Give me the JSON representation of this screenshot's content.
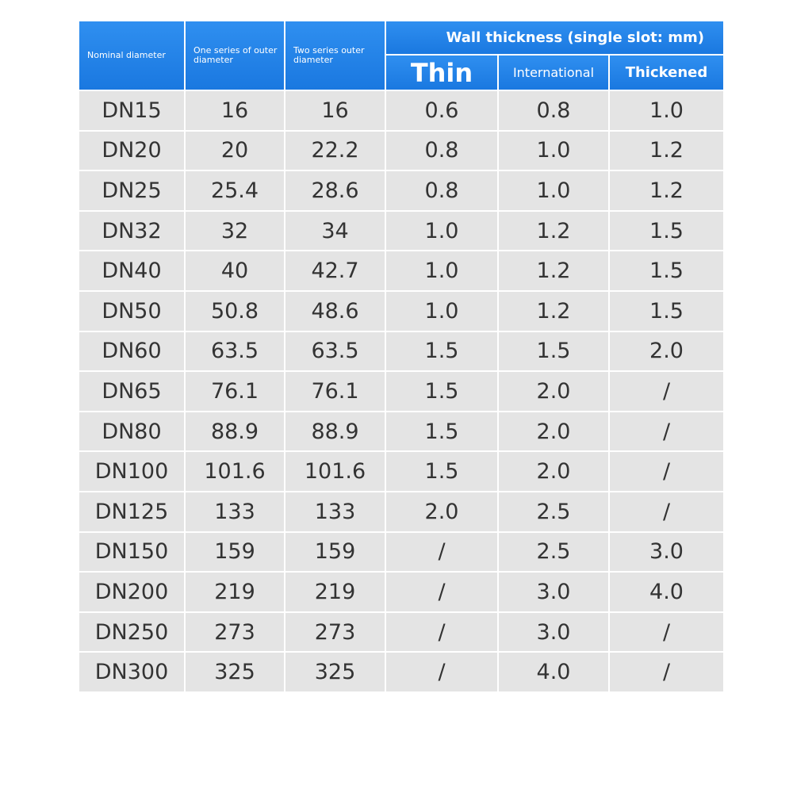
{
  "table": {
    "header": {
      "nominal": "Nominal diameter",
      "series_one": "One series of outer diameter",
      "series_two": "Two series outer diameter",
      "wall_thickness": "Wall thickness (single slot: mm)",
      "subheaders": [
        "Thin",
        "International",
        "Thickened"
      ]
    },
    "rows": [
      [
        "DN15",
        "16",
        "16",
        "0.6",
        "0.8",
        "1.0"
      ],
      [
        "DN20",
        "20",
        "22.2",
        "0.8",
        "1.0",
        "1.2"
      ],
      [
        "DN25",
        "25.4",
        "28.6",
        "0.8",
        "1.0",
        "1.2"
      ],
      [
        "DN32",
        "32",
        "34",
        "1.0",
        "1.2",
        "1.5"
      ],
      [
        "DN40",
        "40",
        "42.7",
        "1.0",
        "1.2",
        "1.5"
      ],
      [
        "DN50",
        "50.8",
        "48.6",
        "1.0",
        "1.2",
        "1.5"
      ],
      [
        "DN60",
        "63.5",
        "63.5",
        "1.5",
        "1.5",
        "2.0"
      ],
      [
        "DN65",
        "76.1",
        "76.1",
        "1.5",
        "2.0",
        "/"
      ],
      [
        "DN80",
        "88.9",
        "88.9",
        "1.5",
        "2.0",
        "/"
      ],
      [
        "DN100",
        "101.6",
        "101.6",
        "1.5",
        "2.0",
        "/"
      ],
      [
        "DN125",
        "133",
        "133",
        "2.0",
        "2.5",
        "/"
      ],
      [
        "DN150",
        "159",
        "159",
        "/",
        "2.5",
        "3.0"
      ],
      [
        "DN200",
        "219",
        "219",
        "/",
        "3.0",
        "4.0"
      ],
      [
        "DN250",
        "273",
        "273",
        "/",
        "3.0",
        "/"
      ],
      [
        "DN300",
        "325",
        "325",
        "/",
        "4.0",
        "/"
      ]
    ]
  }
}
